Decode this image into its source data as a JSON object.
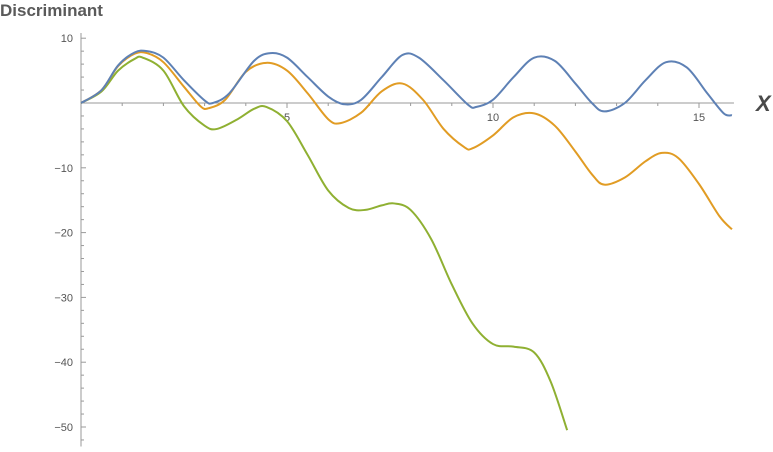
{
  "chart_data": {
    "type": "line",
    "title": "Discriminant",
    "xlabel": "X",
    "ylabel": "",
    "xlim": [
      0,
      15.8
    ],
    "ylim": [
      -53,
      10.5
    ],
    "x_ticks": [
      5,
      10,
      15
    ],
    "y_ticks": [
      10,
      -10,
      -20,
      -30,
      -40,
      -50
    ],
    "grid": false,
    "legend": "none",
    "series": [
      {
        "color": "#5E81B5",
        "points": [
          [
            0,
            0
          ],
          [
            0.5,
            2
          ],
          [
            0.9,
            5.8
          ],
          [
            1.3,
            7.8
          ],
          [
            1.6,
            8
          ],
          [
            2.0,
            7
          ],
          [
            2.5,
            3.5
          ],
          [
            3.0,
            0.4
          ],
          [
            3.2,
            0
          ],
          [
            3.6,
            1.5
          ],
          [
            4.2,
            6.5
          ],
          [
            4.6,
            7.7
          ],
          [
            5.0,
            7
          ],
          [
            5.5,
            4
          ],
          [
            6.0,
            1
          ],
          [
            6.4,
            -0.2
          ],
          [
            6.8,
            0.5
          ],
          [
            7.3,
            4
          ],
          [
            7.8,
            7.4
          ],
          [
            8.2,
            7
          ],
          [
            8.8,
            3.5
          ],
          [
            9.4,
            -0.3
          ],
          [
            9.6,
            -0.6
          ],
          [
            10.0,
            0.5
          ],
          [
            10.5,
            4
          ],
          [
            11.0,
            7
          ],
          [
            11.5,
            6.5
          ],
          [
            12.0,
            3
          ],
          [
            12.4,
            0
          ],
          [
            12.7,
            -1.3
          ],
          [
            13.2,
            0
          ],
          [
            13.7,
            3.5
          ],
          [
            14.2,
            6.3
          ],
          [
            14.7,
            5.5
          ],
          [
            15.2,
            1.5
          ],
          [
            15.6,
            -1.6
          ],
          [
            15.8,
            -1.9
          ]
        ]
      },
      {
        "color": "#E19C24",
        "points": [
          [
            0,
            0
          ],
          [
            0.5,
            2
          ],
          [
            0.9,
            5.7
          ],
          [
            1.3,
            7.6
          ],
          [
            1.6,
            7.7
          ],
          [
            2.0,
            6.3
          ],
          [
            2.5,
            2.5
          ],
          [
            2.9,
            -0.5
          ],
          [
            3.1,
            -0.8
          ],
          [
            3.5,
            0.5
          ],
          [
            4.0,
            4.8
          ],
          [
            4.5,
            6.2
          ],
          [
            5.0,
            5
          ],
          [
            5.5,
            1.5
          ],
          [
            6.0,
            -2.5
          ],
          [
            6.3,
            -3.1
          ],
          [
            6.8,
            -1.5
          ],
          [
            7.3,
            1.8
          ],
          [
            7.8,
            3
          ],
          [
            8.3,
            0.5
          ],
          [
            8.8,
            -4
          ],
          [
            9.3,
            -6.8
          ],
          [
            9.5,
            -7
          ],
          [
            10.0,
            -5
          ],
          [
            10.5,
            -2.2
          ],
          [
            11.0,
            -1.6
          ],
          [
            11.5,
            -3.5
          ],
          [
            12.0,
            -7.5
          ],
          [
            12.4,
            -11
          ],
          [
            12.7,
            -12.6
          ],
          [
            13.2,
            -11.5
          ],
          [
            13.7,
            -9
          ],
          [
            14.1,
            -7.7
          ],
          [
            14.5,
            -8.5
          ],
          [
            15.0,
            -12.5
          ],
          [
            15.5,
            -17.5
          ],
          [
            15.8,
            -19.5
          ]
        ]
      },
      {
        "color": "#8FB032",
        "points": [
          [
            0,
            0
          ],
          [
            0.5,
            1.8
          ],
          [
            0.9,
            5
          ],
          [
            1.3,
            6.8
          ],
          [
            1.5,
            7
          ],
          [
            2.0,
            5
          ],
          [
            2.5,
            -0.5
          ],
          [
            3.0,
            -3.5
          ],
          [
            3.3,
            -4
          ],
          [
            3.8,
            -2.5
          ],
          [
            4.2,
            -0.9
          ],
          [
            4.5,
            -0.6
          ],
          [
            5.0,
            -2.8
          ],
          [
            5.5,
            -8
          ],
          [
            6.0,
            -13.5
          ],
          [
            6.5,
            -16.2
          ],
          [
            6.9,
            -16.5
          ],
          [
            7.3,
            -15.8
          ],
          [
            7.6,
            -15.5
          ],
          [
            8.0,
            -16.5
          ],
          [
            8.5,
            -21
          ],
          [
            9.0,
            -28
          ],
          [
            9.5,
            -34
          ],
          [
            10.0,
            -37.2
          ],
          [
            10.5,
            -37.6
          ],
          [
            11.0,
            -38.5
          ],
          [
            11.4,
            -43
          ],
          [
            11.8,
            -50.5
          ]
        ]
      }
    ]
  }
}
